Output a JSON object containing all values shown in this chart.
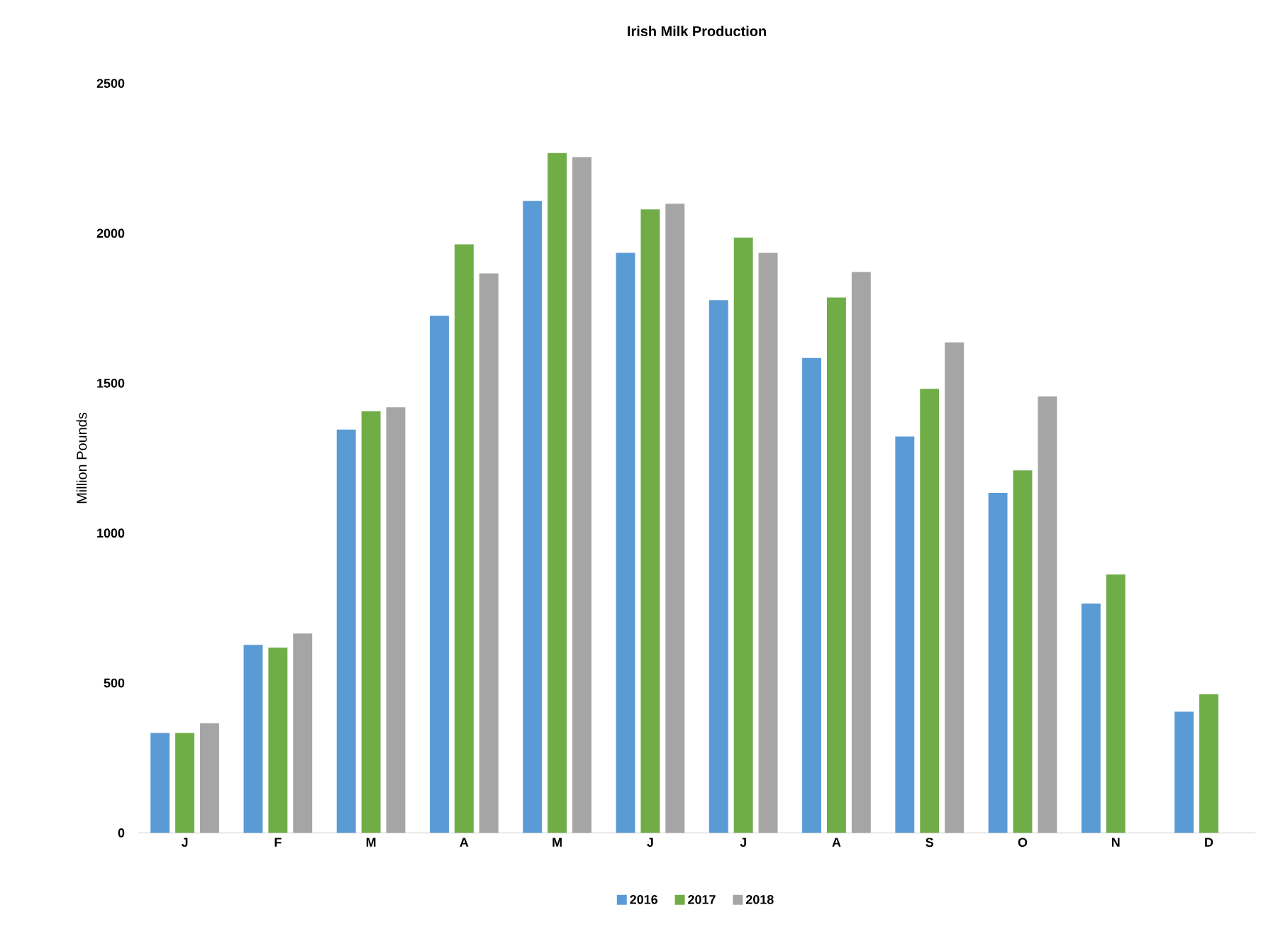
{
  "chart_data": {
    "type": "bar",
    "title": "Irish Milk Production",
    "ylabel": "Million Pounds",
    "categories": [
      "J",
      "F",
      "M",
      "A",
      "M",
      "J",
      "J",
      "A",
      "S",
      "O",
      "N",
      "D"
    ],
    "series": [
      {
        "name": "2016",
        "color": "#5b9bd5",
        "values": [
          333,
          627,
          1345,
          1725,
          2108,
          1935,
          1777,
          1584,
          1322,
          1134,
          765,
          404
        ]
      },
      {
        "name": "2017",
        "color": "#70ad47",
        "values": [
          333,
          618,
          1406,
          1963,
          2268,
          2080,
          1986,
          1786,
          1481,
          1209,
          862,
          462
        ]
      },
      {
        "name": "2018",
        "color": "#a5a5a5",
        "values": [
          366,
          665,
          1420,
          1866,
          2254,
          2099,
          1935,
          1871,
          1636,
          1456,
          null,
          null
        ]
      }
    ],
    "ylim": [
      0,
      2500
    ],
    "yticks": [
      0,
      500,
      1000,
      1500,
      2000,
      2500
    ],
    "grid": false,
    "legend": "bottom"
  }
}
